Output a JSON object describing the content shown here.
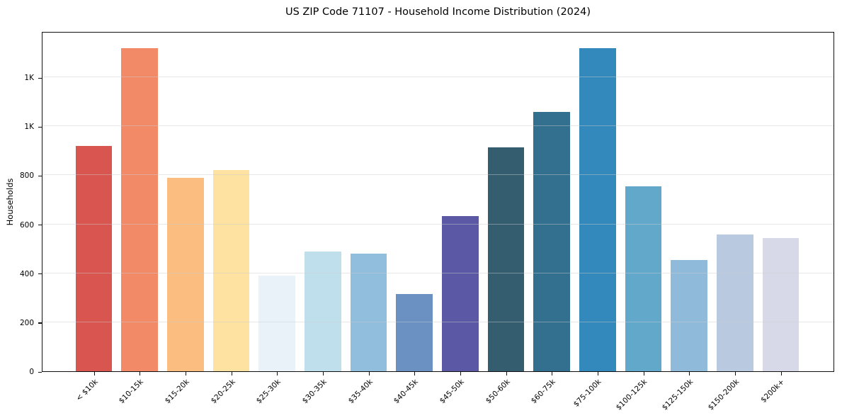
{
  "chart_data": {
    "type": "bar",
    "title": "US ZIP Code 71107 - Household Income Distribution (2024)",
    "xlabel": "",
    "ylabel": "Households",
    "categories": [
      "< $10k",
      "$10-15k",
      "$15-20k",
      "$20-25k",
      "$25-30k",
      "$30-35k",
      "$35-40k",
      "$40-45k",
      "$45-50k",
      "$50-60k",
      "$60-75k",
      "$75-100k",
      "$100-125k",
      "$125-150k",
      "$150-200k",
      "$200k+"
    ],
    "values": [
      920,
      1320,
      790,
      820,
      390,
      490,
      480,
      315,
      633,
      915,
      1058,
      1320,
      754,
      455,
      557,
      544
    ],
    "bar_colors": [
      "#d8564f",
      "#f28a68",
      "#fcbd80",
      "#fde2a2",
      "#e8f2f8",
      "#bfdfec",
      "#92bedd",
      "#6a91c1",
      "#5b59a6",
      "#355d70",
      "#33708f",
      "#3389bc",
      "#62a8cb",
      "#90bada",
      "#b9c9e0",
      "#d8d9e8"
    ],
    "yticks": {
      "values": [
        0,
        200,
        400,
        600,
        800,
        1000,
        1200
      ],
      "labels": [
        "0",
        "200",
        "400",
        "600",
        "800",
        "1K",
        "1K"
      ]
    },
    "ylim": [
      0,
      1388
    ],
    "grid": "horizontal-over-bars",
    "legend": "none",
    "background_color": "#ffffff",
    "spine_color": "#111111",
    "grid_color": "#e6e6e6"
  }
}
